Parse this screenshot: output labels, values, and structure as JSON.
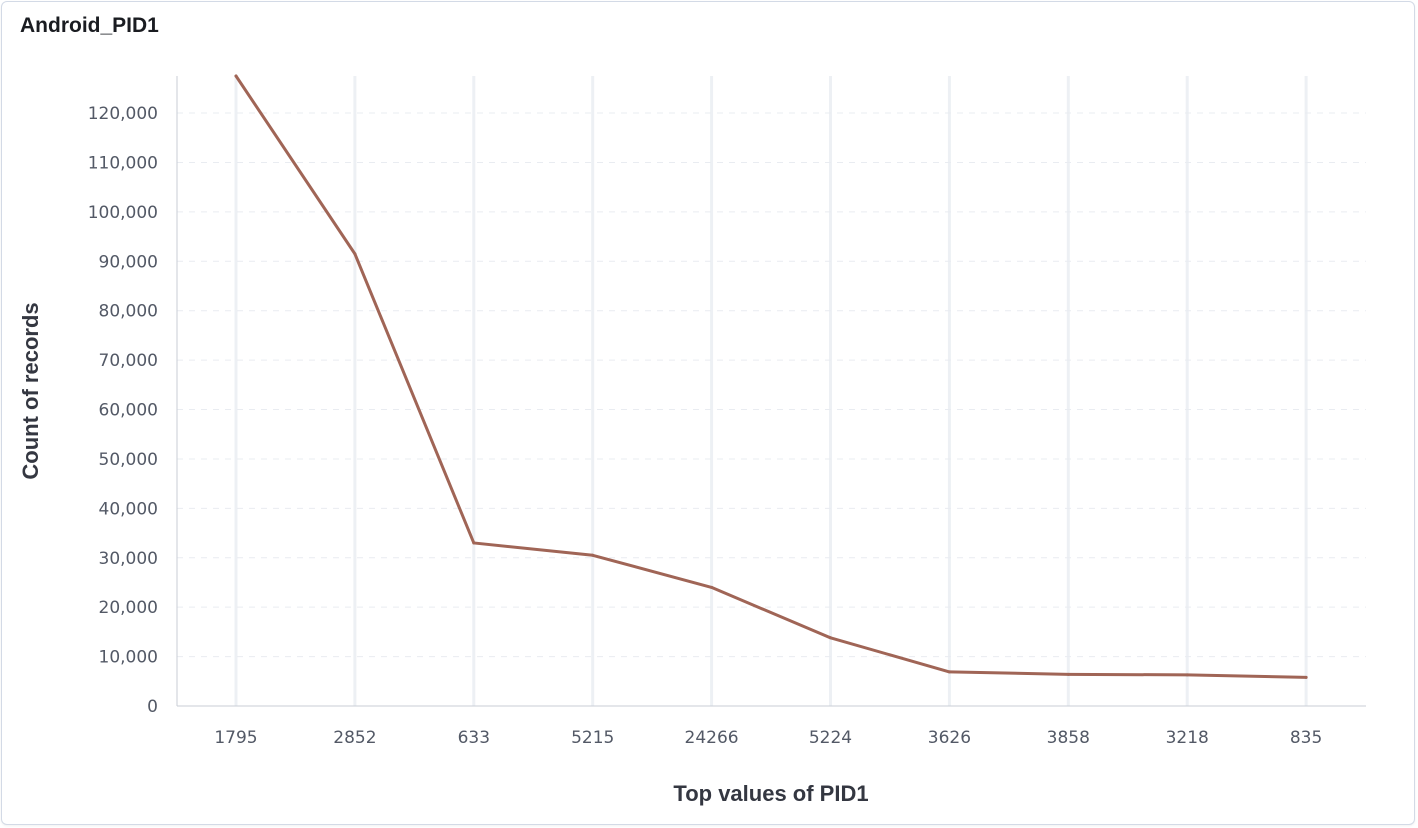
{
  "panel": {
    "title": "Android_PID1"
  },
  "chart_data": {
    "type": "line",
    "title": "Android_PID1",
    "xlabel": "Top values of PID1",
    "ylabel": "Count of records",
    "categories": [
      "1795",
      "2852",
      "633",
      "5215",
      "24266",
      "5224",
      "3626",
      "3858",
      "3218",
      "835"
    ],
    "series": [
      {
        "values": [
          127500,
          91500,
          33000,
          30500,
          24000,
          13800,
          6900,
          6400,
          6300,
          5800
        ],
        "color": "#a06556"
      }
    ],
    "ylim": [
      0,
      127500
    ],
    "yticks": [
      0,
      10000,
      20000,
      30000,
      40000,
      50000,
      60000,
      70000,
      80000,
      90000,
      100000,
      110000,
      120000
    ],
    "ytick_labels": [
      "0",
      "10,000",
      "20,000",
      "30,000",
      "40,000",
      "50,000",
      "60,000",
      "70,000",
      "80,000",
      "90,000",
      "100,000",
      "110,000",
      "120,000"
    ],
    "grid": true,
    "legend": "none"
  }
}
